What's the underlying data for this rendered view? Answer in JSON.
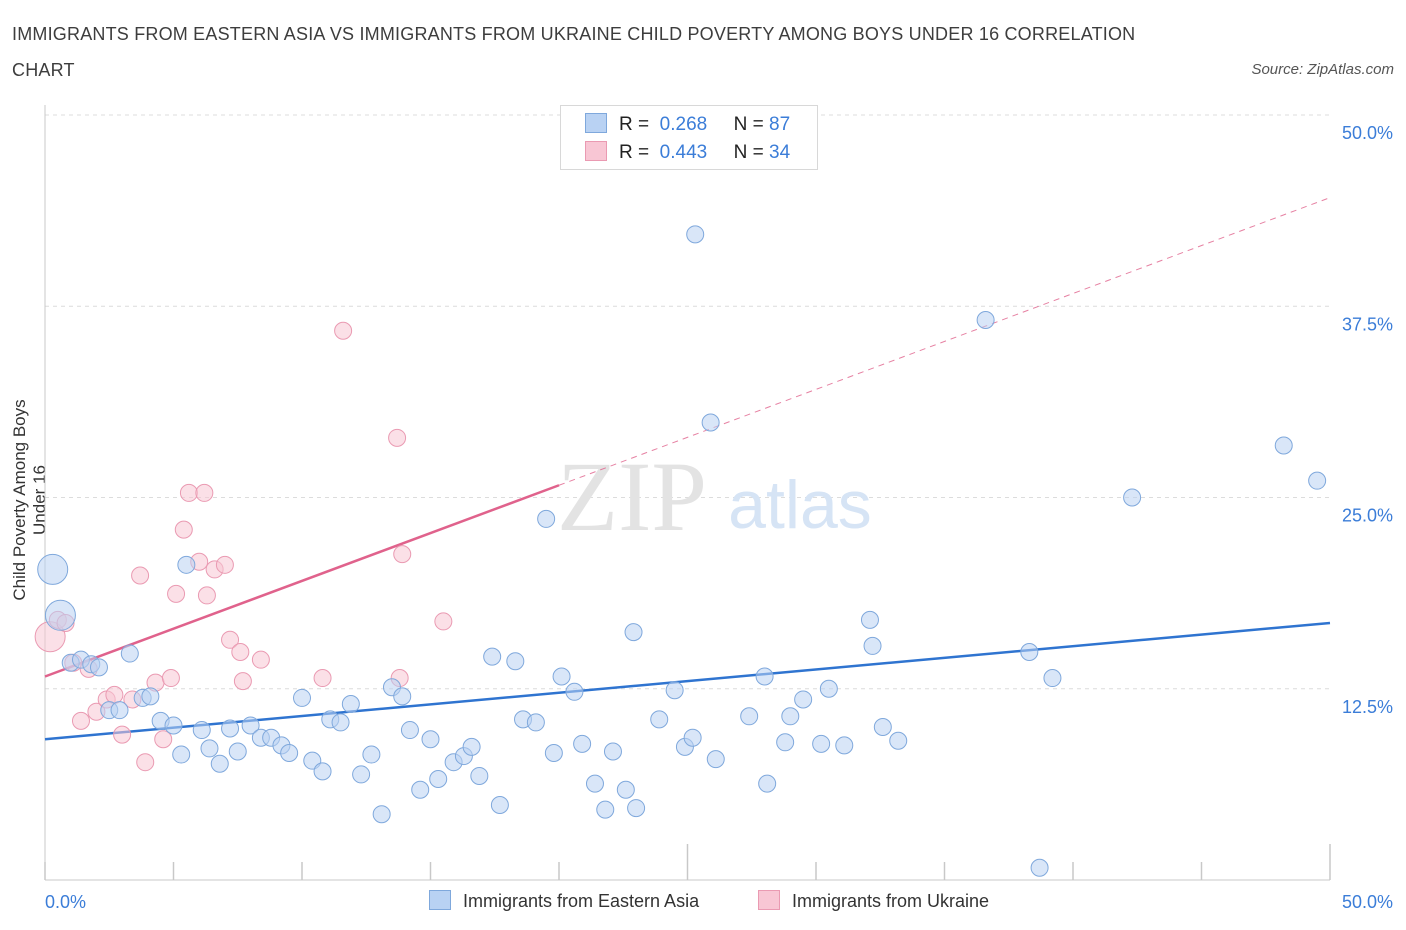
{
  "title": "IMMIGRANTS FROM EASTERN ASIA VS IMMIGRANTS FROM UKRAINE CHILD POVERTY AMONG BOYS UNDER 16 CORRELATION CHART",
  "source": "Source: ZipAtlas.com",
  "watermark": {
    "zip": "ZIP",
    "atlas": "atlas"
  },
  "legend": {
    "eastern_asia": {
      "r_label": "R =",
      "r_value": "0.268",
      "n_label": "N =",
      "n_value": "87"
    },
    "ukraine": {
      "r_label": "R =",
      "r_value": "0.443",
      "n_label": "N =",
      "n_value": "34"
    }
  },
  "bottom_legend": {
    "eastern_asia": "Immigrants from Eastern Asia",
    "ukraine": "Immigrants from Ukraine"
  },
  "colors": {
    "blue_fill": "#b9d2f3",
    "blue_stroke": "#7fa8dc",
    "blue_line": "#2f74d0",
    "pink_fill": "#f8c6d4",
    "pink_stroke": "#ea9ab2",
    "pink_line": "#e0628c",
    "tick_label": "#3b7dd8",
    "grid": "#dcdcdc"
  },
  "chart_data": {
    "type": "scatter",
    "title": "IMMIGRANTS FROM EASTERN ASIA VS IMMIGRANTS FROM UKRAINE CHILD POVERTY AMONG BOYS UNDER 16 CORRELATION CHART",
    "xlabel": "",
    "ylabel": "Child Poverty Among Boys Under 16",
    "xlim": [
      0,
      50
    ],
    "ylim": [
      0,
      50
    ],
    "x_tick_labels": [
      {
        "value": 0,
        "label": "0.0%"
      },
      {
        "value": 50,
        "label": "50.0%"
      }
    ],
    "y_tick_labels": [
      {
        "value": 12.5,
        "label": "12.5%"
      },
      {
        "value": 25,
        "label": "25.0%"
      },
      {
        "value": 37.5,
        "label": "37.5%"
      },
      {
        "value": 50,
        "label": "50.0%"
      }
    ],
    "series": [
      {
        "name": "Immigrants from Eastern Asia",
        "color": "#b9d2f3",
        "trend": {
          "x0": 0,
          "y0": 9.2,
          "x1": 50,
          "y1": 16.8
        },
        "points": [
          {
            "x": 0.3,
            "y": 20.3,
            "big": true
          },
          {
            "x": 0.6,
            "y": 17.3,
            "big": true
          },
          {
            "x": 1.0,
            "y": 14.2
          },
          {
            "x": 1.4,
            "y": 14.4
          },
          {
            "x": 1.8,
            "y": 14.1
          },
          {
            "x": 2.1,
            "y": 13.9
          },
          {
            "x": 2.5,
            "y": 11.1
          },
          {
            "x": 2.9,
            "y": 11.1
          },
          {
            "x": 3.3,
            "y": 14.8
          },
          {
            "x": 3.8,
            "y": 11.9
          },
          {
            "x": 4.1,
            "y": 12.0
          },
          {
            "x": 4.5,
            "y": 10.4
          },
          {
            "x": 5.0,
            "y": 10.1
          },
          {
            "x": 5.3,
            "y": 8.2
          },
          {
            "x": 5.5,
            "y": 20.6
          },
          {
            "x": 6.1,
            "y": 9.8
          },
          {
            "x": 6.4,
            "y": 8.6
          },
          {
            "x": 6.8,
            "y": 7.6
          },
          {
            "x": 7.2,
            "y": 9.9
          },
          {
            "x": 7.5,
            "y": 8.4
          },
          {
            "x": 8.0,
            "y": 10.1
          },
          {
            "x": 8.4,
            "y": 9.3
          },
          {
            "x": 8.8,
            "y": 9.3
          },
          {
            "x": 9.2,
            "y": 8.8
          },
          {
            "x": 9.5,
            "y": 8.3
          },
          {
            "x": 10.0,
            "y": 11.9
          },
          {
            "x": 10.4,
            "y": 7.8
          },
          {
            "x": 10.8,
            "y": 7.1
          },
          {
            "x": 11.1,
            "y": 10.5
          },
          {
            "x": 11.5,
            "y": 10.3
          },
          {
            "x": 11.9,
            "y": 11.5
          },
          {
            "x": 12.3,
            "y": 6.9
          },
          {
            "x": 12.7,
            "y": 8.2
          },
          {
            "x": 13.1,
            "y": 4.3
          },
          {
            "x": 13.5,
            "y": 12.6
          },
          {
            "x": 13.9,
            "y": 12.0
          },
          {
            "x": 14.2,
            "y": 9.8
          },
          {
            "x": 14.6,
            "y": 5.9
          },
          {
            "x": 15.0,
            "y": 9.2
          },
          {
            "x": 15.3,
            "y": 6.6
          },
          {
            "x": 15.9,
            "y": 7.7
          },
          {
            "x": 16.3,
            "y": 8.1
          },
          {
            "x": 16.6,
            "y": 8.7
          },
          {
            "x": 16.9,
            "y": 6.8
          },
          {
            "x": 17.4,
            "y": 14.6
          },
          {
            "x": 17.7,
            "y": 4.9
          },
          {
            "x": 18.3,
            "y": 14.3
          },
          {
            "x": 18.6,
            "y": 10.5
          },
          {
            "x": 19.1,
            "y": 10.3
          },
          {
            "x": 19.5,
            "y": 23.6
          },
          {
            "x": 19.8,
            "y": 8.3
          },
          {
            "x": 20.1,
            "y": 13.3
          },
          {
            "x": 20.6,
            "y": 12.3
          },
          {
            "x": 20.9,
            "y": 8.9
          },
          {
            "x": 21.4,
            "y": 6.3
          },
          {
            "x": 21.8,
            "y": 4.6
          },
          {
            "x": 22.1,
            "y": 8.4
          },
          {
            "x": 22.6,
            "y": 5.9
          },
          {
            "x": 22.9,
            "y": 16.2
          },
          {
            "x": 23.0,
            "y": 4.7
          },
          {
            "x": 23.9,
            "y": 10.5
          },
          {
            "x": 24.5,
            "y": 12.4
          },
          {
            "x": 24.9,
            "y": 8.7
          },
          {
            "x": 25.2,
            "y": 9.3
          },
          {
            "x": 25.3,
            "y": 42.2
          },
          {
            "x": 25.9,
            "y": 29.9
          },
          {
            "x": 26.1,
            "y": 7.9
          },
          {
            "x": 27.4,
            "y": 10.7
          },
          {
            "x": 28.0,
            "y": 13.3
          },
          {
            "x": 28.1,
            "y": 6.3
          },
          {
            "x": 28.8,
            "y": 9.0
          },
          {
            "x": 29.0,
            "y": 10.7
          },
          {
            "x": 29.5,
            "y": 11.8
          },
          {
            "x": 30.2,
            "y": 8.9
          },
          {
            "x": 30.5,
            "y": 12.5
          },
          {
            "x": 31.1,
            "y": 8.8
          },
          {
            "x": 32.1,
            "y": 17.0
          },
          {
            "x": 32.2,
            "y": 15.3
          },
          {
            "x": 32.6,
            "y": 10.0
          },
          {
            "x": 33.2,
            "y": 9.1
          },
          {
            "x": 36.6,
            "y": 36.6
          },
          {
            "x": 38.3,
            "y": 14.9
          },
          {
            "x": 39.2,
            "y": 13.2
          },
          {
            "x": 38.7,
            "y": 0.8
          },
          {
            "x": 42.3,
            "y": 25.0
          },
          {
            "x": 48.2,
            "y": 28.4
          },
          {
            "x": 49.5,
            "y": 26.1
          }
        ]
      },
      {
        "name": "Immigrants from Ukraine",
        "color": "#f8c6d4",
        "trend": {
          "x0": 0,
          "y0": 13.3,
          "x1": 20,
          "y1": 25.8,
          "dashed_to": {
            "x": 50,
            "y": 44.6
          }
        },
        "points": [
          {
            "x": 0.2,
            "y": 15.9,
            "big": true
          },
          {
            "x": 0.5,
            "y": 17.0
          },
          {
            "x": 0.8,
            "y": 16.8
          },
          {
            "x": 1.1,
            "y": 14.2
          },
          {
            "x": 1.4,
            "y": 10.4
          },
          {
            "x": 1.7,
            "y": 13.8
          },
          {
            "x": 2.0,
            "y": 11.0
          },
          {
            "x": 2.4,
            "y": 11.8
          },
          {
            "x": 2.7,
            "y": 12.1
          },
          {
            "x": 3.0,
            "y": 9.5
          },
          {
            "x": 3.4,
            "y": 11.8
          },
          {
            "x": 3.7,
            "y": 19.9
          },
          {
            "x": 3.9,
            "y": 7.7
          },
          {
            "x": 4.3,
            "y": 12.9
          },
          {
            "x": 4.6,
            "y": 9.2
          },
          {
            "x": 4.9,
            "y": 13.2
          },
          {
            "x": 5.1,
            "y": 18.7
          },
          {
            "x": 5.4,
            "y": 22.9
          },
          {
            "x": 5.6,
            "y": 25.3
          },
          {
            "x": 6.0,
            "y": 20.8
          },
          {
            "x": 6.2,
            "y": 25.3
          },
          {
            "x": 6.3,
            "y": 18.6
          },
          {
            "x": 6.6,
            "y": 20.3
          },
          {
            "x": 7.0,
            "y": 20.6
          },
          {
            "x": 7.2,
            "y": 15.7
          },
          {
            "x": 7.6,
            "y": 14.9
          },
          {
            "x": 7.7,
            "y": 13.0
          },
          {
            "x": 8.4,
            "y": 14.4
          },
          {
            "x": 10.8,
            "y": 13.2
          },
          {
            "x": 11.6,
            "y": 35.9
          },
          {
            "x": 13.7,
            "y": 28.9
          },
          {
            "x": 13.9,
            "y": 21.3
          },
          {
            "x": 13.8,
            "y": 13.2
          },
          {
            "x": 15.5,
            "y": 16.9
          }
        ]
      }
    ]
  }
}
